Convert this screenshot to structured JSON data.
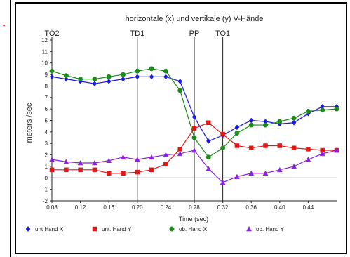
{
  "chart_data": {
    "type": "line",
    "title": "horizontale (x) und vertikale (y) V-Hände",
    "xlabel": "Time (sec)",
    "ylabel": "meters /sec",
    "xlim": [
      0.08,
      0.48
    ],
    "ylim": [
      -2,
      12
    ],
    "xticks": [
      "0.08",
      "0.12",
      "0.16",
      "0.20",
      "0.24",
      "0.28",
      "0.32",
      "0.36",
      "0.40",
      "0.44"
    ],
    "yticks": [
      "-2",
      "-1",
      "0",
      "1",
      "2",
      "3",
      "4",
      "5",
      "6",
      "7",
      "8",
      "9",
      "10",
      "11",
      "12"
    ],
    "x": [
      0.08,
      0.1,
      0.12,
      0.14,
      0.16,
      0.18,
      0.2,
      0.22,
      0.24,
      0.26,
      0.28,
      0.3,
      0.32,
      0.34,
      0.36,
      0.38,
      0.4,
      0.42,
      0.44,
      0.46,
      0.48
    ],
    "series": [
      {
        "name": "unt Hand X",
        "color": "#1a1adc",
        "marker": "diamond",
        "values": [
          8.8,
          8.6,
          8.4,
          8.2,
          8.4,
          8.6,
          8.8,
          8.8,
          8.8,
          8.4,
          5.3,
          3.2,
          3.7,
          4.4,
          5.0,
          4.9,
          4.7,
          4.8,
          5.6,
          6.2,
          6.2
        ]
      },
      {
        "name": "unt. Hand Y",
        "color": "#e01818",
        "marker": "square",
        "values": [
          0.7,
          0.7,
          0.7,
          0.7,
          0.4,
          0.4,
          0.5,
          0.7,
          1.2,
          2.5,
          4.3,
          4.8,
          3.8,
          2.8,
          2.6,
          2.8,
          2.8,
          2.6,
          2.5,
          2.4,
          2.4
        ]
      },
      {
        "name": "ob. Hand X",
        "color": "#1a8a1a",
        "marker": "circle",
        "values": [
          9.3,
          8.9,
          8.6,
          8.6,
          8.8,
          9.0,
          9.3,
          9.5,
          9.3,
          7.6,
          3.5,
          1.8,
          2.6,
          3.9,
          4.6,
          4.6,
          4.9,
          5.2,
          5.8,
          5.9,
          6.0
        ]
      },
      {
        "name": "ob. Hand Y",
        "color": "#8a22dc",
        "marker": "triangle",
        "values": [
          1.6,
          1.4,
          1.3,
          1.3,
          1.5,
          1.8,
          1.6,
          1.8,
          2.0,
          2.1,
          2.4,
          0.8,
          -0.4,
          0.1,
          0.4,
          0.4,
          0.7,
          1.0,
          1.6,
          2.1,
          2.4
        ]
      }
    ],
    "events": [
      {
        "label": "TO2",
        "x": 0.08
      },
      {
        "label": "TD1",
        "x": 0.2
      },
      {
        "label": "PP",
        "x": 0.28
      },
      {
        "label": "TO1",
        "x": 0.32
      }
    ],
    "grid": false,
    "legend_position": "bottom"
  }
}
